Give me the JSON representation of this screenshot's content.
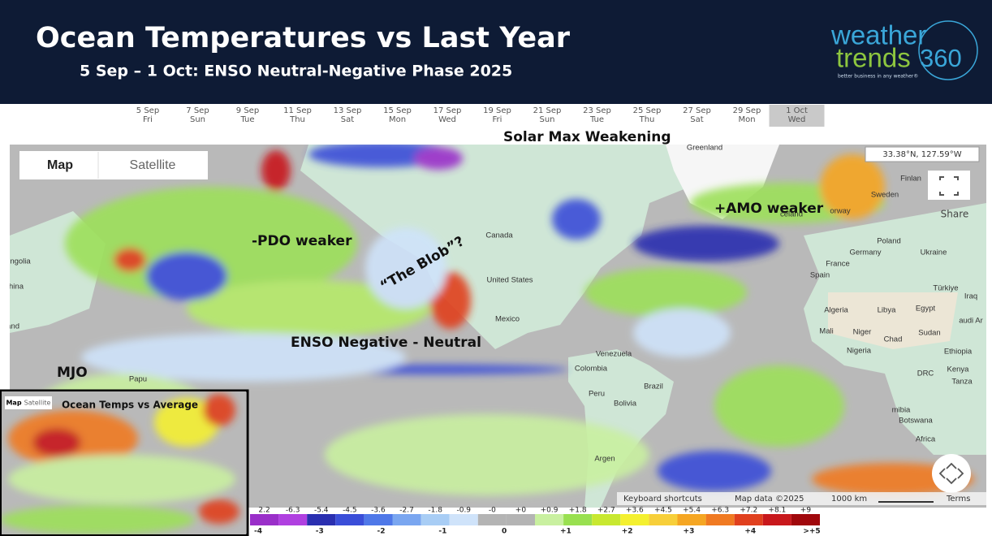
{
  "header": {
    "title": "Ocean Temperatures vs Last Year",
    "subtitle": "5 Sep – 1 Oct: ENSO Neutral-Negative Phase 2025",
    "logo": {
      "word1": "weather",
      "word2": "trends",
      "number": "360",
      "tagline": "better business in any weather®"
    }
  },
  "timeline": {
    "dates": [
      {
        "date": "5 Sep",
        "day": "Fri"
      },
      {
        "date": "7 Sep",
        "day": "Sun"
      },
      {
        "date": "9 Sep",
        "day": "Tue"
      },
      {
        "date": "11 Sep",
        "day": "Thu"
      },
      {
        "date": "13 Sep",
        "day": "Sat"
      },
      {
        "date": "15 Sep",
        "day": "Mon"
      },
      {
        "date": "17 Sep",
        "day": "Wed"
      },
      {
        "date": "19 Sep",
        "day": "Fri"
      },
      {
        "date": "21 Sep",
        "day": "Sun"
      },
      {
        "date": "23 Sep",
        "day": "Tue"
      },
      {
        "date": "25 Sep",
        "day": "Thu"
      },
      {
        "date": "27 Sep",
        "day": "Sat"
      },
      {
        "date": "29 Sep",
        "day": "Mon"
      },
      {
        "date": "1 Oct",
        "day": "Wed",
        "selected": true
      }
    ]
  },
  "map": {
    "tabs": [
      "Map",
      "Satellite"
    ],
    "coordinates": "33.38°N, 127.59°W",
    "share": "Share",
    "places": [
      "Greenland",
      "Finlan",
      "celand",
      "Sweden",
      "orway",
      "Canada",
      "Poland",
      "Germany",
      "Ukraine",
      "France",
      "Spain",
      "Türkiye",
      "United States",
      "Algeria",
      "Libya",
      "Egypt",
      "Iraq",
      "Mexico",
      "Mali",
      "Niger",
      "Chad",
      "Sudan",
      "audi Ar",
      "Venezuela",
      "Nigeria",
      "Ethiopia",
      "Colombia",
      "DRC",
      "Kenya",
      "Tanza",
      "Peru",
      "Brazil",
      "Bolivia",
      "mibia",
      "Botswana",
      "Argen",
      "Africa",
      "ngolia",
      "hina",
      "Papu",
      "land"
    ],
    "footer": [
      "Keyboard shortcuts",
      "Map data ©2025",
      "1000 km",
      "Terms"
    ]
  },
  "annotations": [
    "Solar Max Weakening",
    "+AMO weaker",
    "-PDO weaker",
    "“The Blob”?",
    "ENSO Negative - Neutral",
    "MJO"
  ],
  "legend": {
    "top_labels": [
      "2.2",
      "-6.3",
      "-5.4",
      "-4.5",
      "-3.6",
      "-2.7",
      "-1.8",
      "-0.9",
      "-0",
      "+0",
      "+0.9",
      "+1.8",
      "+2.7",
      "+3.6",
      "+4.5",
      "+5.4",
      "+6.3",
      "+7.2",
      "+8.1",
      "+9"
    ],
    "bottom_labels": [
      "-4",
      "-3",
      "-2",
      "-1",
      "0",
      "+1",
      "+2",
      "+3",
      "+4",
      ">+5"
    ],
    "colors": [
      "#9a2fc9",
      "#b040e0",
      "#2a2fb0",
      "#3a4ed8",
      "#4f78e8",
      "#7aa6f0",
      "#a8cdf5",
      "#cfe3fa",
      "#b4b4b4",
      "#b4b4b4",
      "#c9f0a0",
      "#99e050",
      "#c8e830",
      "#f4f030",
      "#f7cf3a",
      "#f5a623",
      "#f07a22",
      "#e0401e",
      "#c8181c",
      "#a0080c"
    ]
  },
  "inset": {
    "tabs": [
      "Map",
      "Satellite"
    ],
    "title": "Ocean Temps vs Average"
  }
}
